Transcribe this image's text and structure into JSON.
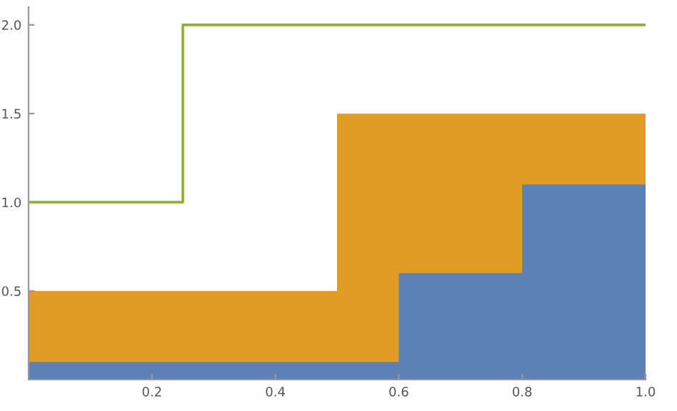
{
  "chart_data": {
    "type": "area",
    "xlim": [
      0,
      1
    ],
    "ylim": [
      0,
      2.1
    ],
    "xticks": [
      0.2,
      0.4,
      0.6,
      0.8,
      {
        "value": 1.0,
        "label": "1.0"
      }
    ],
    "yticks": [
      0.5,
      {
        "value": 1.0,
        "label": "1.0"
      },
      1.5,
      {
        "value": 2.0,
        "label": "2.0"
      }
    ],
    "grid": false,
    "legend": false,
    "series": [
      {
        "color": "#e19c24",
        "x": [
          0,
          0.5,
          0.5,
          1
        ],
        "values": [
          0.5,
          0.5,
          1.5,
          1.5
        ]
      },
      {
        "color": "#5e81b5",
        "x": [
          0,
          0.6,
          0.6,
          0.8,
          0.8,
          1
        ],
        "values": [
          0.1,
          0.1,
          0.6,
          0.6,
          1.1,
          1.1
        ]
      },
      {
        "type": "line",
        "color": "#8fb032",
        "x": [
          0,
          0.25,
          0.25,
          1
        ],
        "values": [
          1,
          1,
          2,
          2
        ]
      }
    ]
  }
}
